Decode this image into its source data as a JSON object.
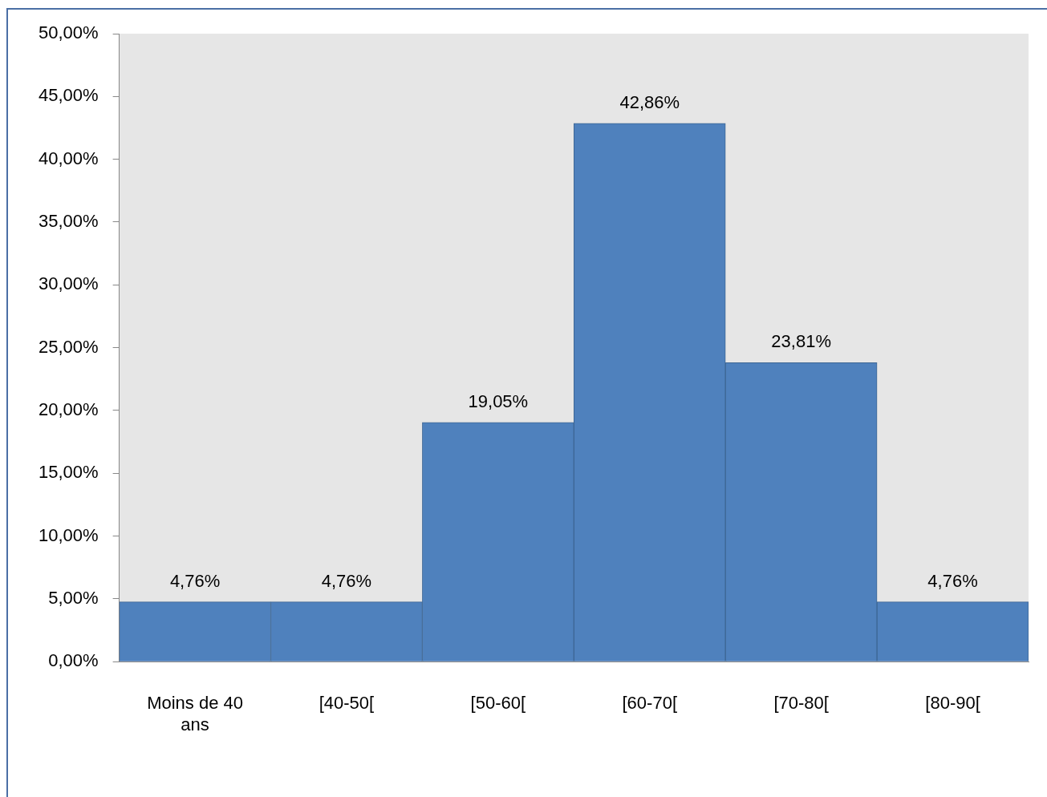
{
  "chart_data": {
    "type": "bar",
    "categories": [
      "Moins de 40 ans",
      "[40-50[",
      "[50-60[",
      "[60-70[",
      "[70-80[",
      "[80-90["
    ],
    "values": [
      4.76,
      4.76,
      19.05,
      42.86,
      23.81,
      4.76
    ],
    "value_labels": [
      "4,76%",
      "4,76%",
      "19,05%",
      "42,86%",
      "23,81%",
      "4,76%"
    ],
    "color": "#4f81bd",
    "ylim": [
      0,
      50
    ],
    "yticks": [
      {
        "value": 0,
        "label": "0,00%"
      },
      {
        "value": 5,
        "label": "5,00%"
      },
      {
        "value": 10,
        "label": "10,00%"
      },
      {
        "value": 15,
        "label": "15,00%"
      },
      {
        "value": 20,
        "label": "20,00%"
      },
      {
        "value": 25,
        "label": "25,00%"
      },
      {
        "value": 30,
        "label": "30,00%"
      },
      {
        "value": 35,
        "label": "35,00%"
      },
      {
        "value": 40,
        "label": "40,00%"
      },
      {
        "value": 45,
        "label": "45,00%"
      },
      {
        "value": 50,
        "label": "50,00%"
      }
    ],
    "grid": false,
    "legend": false
  }
}
